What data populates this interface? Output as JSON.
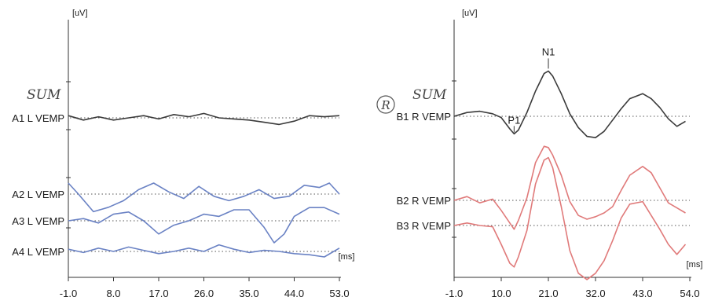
{
  "chart_data": [
    {
      "type": "line",
      "panel": "left",
      "ylabel": "[uV]",
      "xlabel": "[ms]",
      "handwritten_label": "SUM",
      "xlim": [
        -1.0,
        53.0
      ],
      "x_ticks": [
        "-1.0",
        "8.0",
        "17.0",
        "26.0",
        "35.0",
        "44.0",
        "53.0"
      ],
      "series": [
        {
          "name": "A1 L VEMP",
          "color": "#3a3a3a",
          "x": [
            -1,
            2,
            5,
            8,
            11,
            14,
            17,
            20,
            23,
            26,
            29,
            32,
            35,
            38,
            41,
            44,
            47,
            50,
            53
          ],
          "y": [
            0.1,
            -0.1,
            0.05,
            -0.1,
            0.0,
            0.1,
            -0.05,
            0.15,
            0.05,
            0.2,
            0.0,
            -0.05,
            -0.1,
            -0.2,
            -0.3,
            -0.15,
            0.1,
            0.05,
            0.1
          ]
        },
        {
          "name": "A2 L VEMP",
          "color": "#6a82c4",
          "x": [
            -1,
            1,
            4,
            7,
            10,
            13,
            16,
            19,
            22,
            25,
            28,
            31,
            34,
            37,
            40,
            43,
            46,
            49,
            51,
            53
          ],
          "y": [
            0.5,
            0.0,
            -0.8,
            -0.6,
            -0.3,
            0.2,
            0.5,
            0.1,
            -0.2,
            0.35,
            -0.1,
            -0.3,
            -0.1,
            0.2,
            -0.2,
            -0.1,
            0.4,
            0.3,
            0.5,
            0.0
          ]
        },
        {
          "name": "A3 L VEMP",
          "color": "#6a82c4",
          "x": [
            -1,
            2,
            5,
            8,
            11,
            14,
            17,
            20,
            23,
            26,
            29,
            32,
            35,
            38,
            40,
            42,
            44,
            47,
            50,
            53
          ],
          "y": [
            0.0,
            0.1,
            -0.1,
            0.3,
            0.4,
            0.0,
            -0.6,
            -0.2,
            0.0,
            0.3,
            0.2,
            0.5,
            0.5,
            -0.3,
            -1.0,
            -0.6,
            0.2,
            0.6,
            0.6,
            0.3
          ]
        },
        {
          "name": "A4 L VEMP",
          "color": "#6a82c4",
          "x": [
            -1,
            2,
            5,
            8,
            11,
            14,
            17,
            20,
            23,
            26,
            29,
            32,
            35,
            38,
            41,
            44,
            47,
            50,
            53
          ],
          "y": [
            0.1,
            -0.05,
            0.15,
            0.0,
            0.2,
            0.05,
            -0.1,
            0.0,
            0.15,
            0.0,
            0.3,
            0.1,
            -0.05,
            0.05,
            0.0,
            -0.1,
            -0.15,
            -0.25,
            0.15
          ]
        }
      ]
    },
    {
      "type": "line",
      "panel": "right",
      "ylabel": "[uV]",
      "xlabel": "[ms]",
      "handwritten_label": "SUM",
      "handwritten_mark": "R",
      "xlim": [
        -1.0,
        54.0
      ],
      "x_ticks": [
        "-1.0",
        "10.0",
        "21.0",
        "32.0",
        "43.0",
        "54.0"
      ],
      "annotations": [
        {
          "text": "N1",
          "x": 21.0
        },
        {
          "text": "P1",
          "x": 13.0
        }
      ],
      "series": [
        {
          "name": "B1 R VEMP",
          "color": "#3a3a3a",
          "x": [
            -1,
            2,
            5,
            8,
            10,
            12,
            13,
            14,
            16,
            18,
            20,
            21,
            22,
            24,
            26,
            28,
            30,
            32,
            34,
            36,
            38,
            40,
            43,
            45,
            47,
            49,
            51,
            53
          ],
          "y": [
            0.0,
            0.3,
            0.4,
            0.2,
            -0.1,
            -1.0,
            -1.4,
            -1.1,
            0.3,
            2.0,
            3.4,
            3.6,
            3.2,
            1.8,
            0.2,
            -0.9,
            -1.6,
            -1.7,
            -1.2,
            -0.3,
            0.6,
            1.4,
            1.8,
            1.4,
            0.7,
            -0.2,
            -0.8,
            -0.4
          ]
        },
        {
          "name": "B2 R VEMP",
          "color": "#e07a7a",
          "x": [
            -1,
            2,
            5,
            8,
            10,
            12,
            13,
            14,
            16,
            18,
            20,
            21,
            22,
            24,
            26,
            28,
            30,
            32,
            34,
            36,
            38,
            40,
            43,
            45,
            47,
            49,
            51,
            53
          ],
          "y": [
            0.0,
            0.3,
            -0.2,
            0.1,
            -0.8,
            -1.8,
            -2.3,
            -1.6,
            0.2,
            3.0,
            4.3,
            4.2,
            3.6,
            2.0,
            -0.1,
            -1.2,
            -1.5,
            -1.3,
            -1.0,
            -0.5,
            0.8,
            2.0,
            2.7,
            2.2,
            1.0,
            -0.2,
            -0.6,
            -1.0
          ]
        },
        {
          "name": "B3 R VEMP",
          "color": "#e07a7a",
          "x": [
            -1,
            2,
            5,
            8,
            10,
            12,
            13,
            14,
            16,
            18,
            20,
            21,
            22,
            24,
            26,
            28,
            30,
            32,
            34,
            36,
            38,
            40,
            43,
            45,
            47,
            49,
            51,
            53
          ],
          "y": [
            0.0,
            0.2,
            0.0,
            -0.1,
            -1.5,
            -3.0,
            -3.3,
            -2.5,
            -0.4,
            3.3,
            5.2,
            5.4,
            4.6,
            1.5,
            -2.0,
            -3.8,
            -4.3,
            -3.8,
            -2.8,
            -1.2,
            0.6,
            1.7,
            1.9,
            0.8,
            -0.3,
            -1.5,
            -2.3,
            -1.5
          ]
        }
      ]
    }
  ]
}
